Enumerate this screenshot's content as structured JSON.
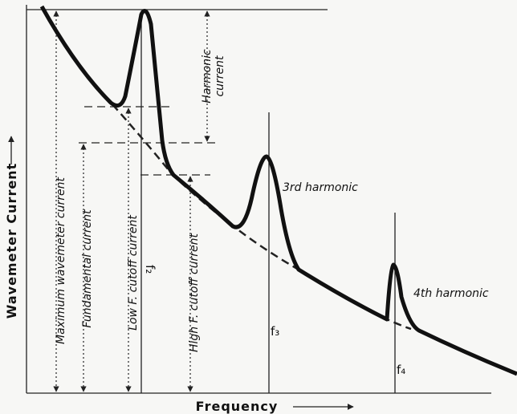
{
  "axes": {
    "y_label": "Wavemeter Current",
    "x_label": "Frequency"
  },
  "labels": {
    "maximum": "Maximum wavemeter current",
    "fundamental": "Fundamental current",
    "low_cutoff": "Low F. cutoff current",
    "high_cutoff": "High F. cutoff current",
    "harmonic_line1": "Harmonic",
    "harmonic_line2": "current",
    "third": "3rd harmonic",
    "fourth": "4th harmonic"
  },
  "frequencies": [
    "f₂",
    "f₃",
    "f₄"
  ]
}
